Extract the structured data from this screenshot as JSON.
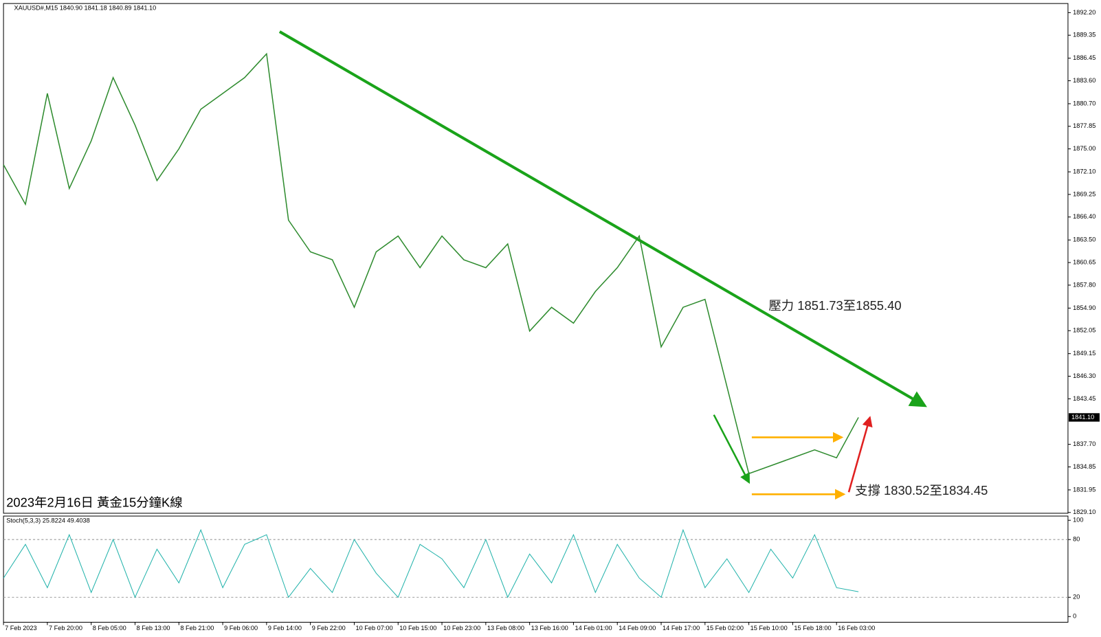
{
  "chart_data": {
    "type": "line",
    "title": "XAUUSD#,M15  1840.90 1841.18 1840.89 1841.10",
    "caption": "2023年2月16日 黃金15分鐘K線",
    "resistance_label": "壓力 1851.73至1855.40",
    "support_label": "支撐 1830.52至1834.45",
    "categories": [
      "7 Feb 2023",
      null,
      "7 Feb 20:00",
      null,
      "8 Feb 05:00",
      null,
      "8 Feb 13:00",
      null,
      "8 Feb 21:00",
      null,
      "9 Feb 06:00",
      null,
      "9 Feb 14:00",
      null,
      "9 Feb 22:00",
      null,
      "10 Feb 07:00",
      null,
      "10 Feb 15:00",
      null,
      "10 Feb 23:00",
      null,
      "13 Feb 08:00",
      null,
      "13 Feb 16:00",
      null,
      "14 Feb 01:00",
      null,
      "14 Feb 09:00",
      null,
      "14 Feb 17:00",
      null,
      "15 Feb 02:00",
      null,
      "15 Feb 10:00",
      null,
      "15 Feb 18:00",
      null,
      "16 Feb 03:00",
      null
    ],
    "values": [
      1873,
      1868,
      1882,
      1870,
      1876,
      1884,
      1878,
      1871,
      1875,
      1880,
      1882,
      1884,
      1887,
      1866,
      1862,
      1861,
      1855,
      1862,
      1864,
      1860,
      1864,
      1861,
      1860,
      1863,
      1852,
      1855,
      1853,
      1857,
      1860,
      1864,
      1850,
      1855,
      1856,
      1845,
      1834,
      1835,
      1836,
      1837,
      1836,
      1841.1
    ],
    "color": "#2e8b2e",
    "ylim": [
      1829.0,
      1893.35
    ],
    "yticks": [
      {
        "value": 1892.2,
        "label": "1892.20"
      },
      {
        "value": 1889.35,
        "label": "1889.35"
      },
      {
        "value": 1886.45,
        "label": "1886.45"
      },
      {
        "value": 1883.6,
        "label": "1883.60"
      },
      {
        "value": 1880.7,
        "label": "1880.70"
      },
      {
        "value": 1877.85,
        "label": "1877.85"
      },
      {
        "value": 1875,
        "label": "1875.00"
      },
      {
        "value": 1872.1,
        "label": "1872.10"
      },
      {
        "value": 1869.25,
        "label": "1869.25"
      },
      {
        "value": 1866.4,
        "label": "1866.40"
      },
      {
        "value": 1863.5,
        "label": "1863.50"
      },
      {
        "value": 1860.65,
        "label": "1860.65"
      },
      {
        "value": 1857.8,
        "label": "1857.80"
      },
      {
        "value": 1854.9,
        "label": "1854.90"
      },
      {
        "value": 1852.05,
        "label": "1852.05"
      },
      {
        "value": 1849.15,
        "label": "1849.15"
      },
      {
        "value": 1846.3,
        "label": "1846.30"
      },
      {
        "value": 1843.45,
        "label": "1843.45"
      },
      {
        "value": 1837.7,
        "label": "1837.70"
      },
      {
        "value": 1834.85,
        "label": "1834.85"
      },
      {
        "value": 1831.95,
        "label": "1831.95"
      },
      {
        "value": 1829.1,
        "label": "1829.10"
      }
    ],
    "last_price": {
      "value": 1841.1,
      "label": "1841.10"
    },
    "indicator": {
      "title": "Stoch(5,3,3) 25.8224 49.4038",
      "color": "#20b2aa",
      "values": [
        40,
        75,
        30,
        85,
        25,
        80,
        20,
        70,
        35,
        90,
        30,
        75,
        85,
        20,
        50,
        25,
        80,
        45,
        20,
        75,
        60,
        30,
        80,
        20,
        65,
        35,
        85,
        25,
        75,
        40,
        20,
        90,
        30,
        60,
        25,
        70,
        40,
        85,
        30,
        25.8224
      ],
      "ylim": [
        -5.9,
        104.4
      ],
      "yticks": [
        100,
        80,
        20,
        0
      ],
      "levels": [
        80,
        20
      ]
    }
  }
}
